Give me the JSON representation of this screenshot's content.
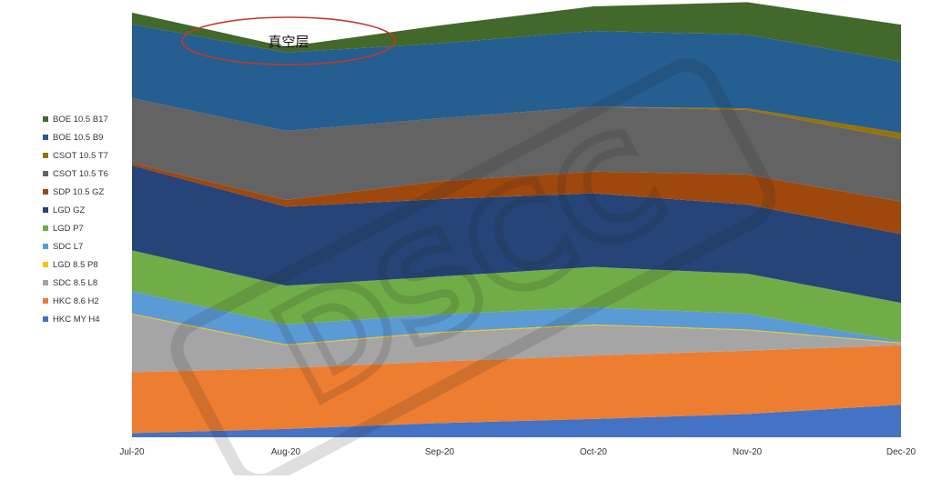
{
  "chart_data": {
    "type": "area",
    "stacked": true,
    "x": [
      "Jul-20",
      "Aug-20",
      "Sep-20",
      "Oct-20",
      "Nov-20",
      "Dec-20"
    ],
    "ylim": [
      0,
      100
    ],
    "grid": false,
    "legend_position": "left",
    "series": [
      {
        "name": "HKC MY H4",
        "color": "#4472c4",
        "values": [
          1.0,
          2.0,
          3.4,
          4.4,
          5.6,
          7.8
        ]
      },
      {
        "name": "HKC 8.6 H2",
        "color": "#ed7d31",
        "values": [
          14.6,
          14.6,
          14.8,
          15.2,
          15.2,
          14.3
        ]
      },
      {
        "name": "SDC 8.5 L8",
        "color": "#a5a5a5",
        "values": [
          13.9,
          5.5,
          6.9,
          7.3,
          4.9,
          0.5
        ]
      },
      {
        "name": "LGD 8.5 P8",
        "color": "#ffc000",
        "values": [
          0.2,
          0.2,
          0.2,
          0.2,
          0.2,
          0.2
        ]
      },
      {
        "name": "SDC L7",
        "color": "#5b9bd5",
        "values": [
          5.4,
          4.8,
          4.2,
          4.1,
          3.8,
          0.2
        ]
      },
      {
        "name": "LGD P7",
        "color": "#70ad47",
        "values": [
          9.8,
          9.3,
          9.1,
          9.7,
          9.6,
          9.3
        ]
      },
      {
        "name": "LGD GZ",
        "color": "#264478",
        "values": [
          20.4,
          19.0,
          18.6,
          17.7,
          16.6,
          16.5
        ]
      },
      {
        "name": "SDP 10.5 GZ",
        "color": "#9e480e",
        "values": [
          0.6,
          1.6,
          4.3,
          5.2,
          7.2,
          7.8
        ]
      },
      {
        "name": "CSOT 10.5 T6",
        "color": "#636363",
        "values": [
          15.6,
          16.6,
          15.1,
          15.6,
          15.5,
          15.1
        ]
      },
      {
        "name": "CSOT 10.5 T7",
        "color": "#997300",
        "values": [
          0.0,
          0.0,
          0.0,
          0.0,
          0.4,
          1.4
        ]
      },
      {
        "name": "BOE 10.5 B9",
        "color": "#255e91",
        "values": [
          17.7,
          18.8,
          18.0,
          18.2,
          17.7,
          17.1
        ]
      },
      {
        "name": "BOE 10.5 B17",
        "color": "#43682b",
        "values": [
          2.8,
          1.4,
          4.3,
          5.9,
          7.8,
          8.9
        ]
      }
    ],
    "annotations": [
      {
        "text": "真空层",
        "target": "Aug-20 top"
      }
    ]
  },
  "watermark": {
    "text": "DSCC"
  }
}
